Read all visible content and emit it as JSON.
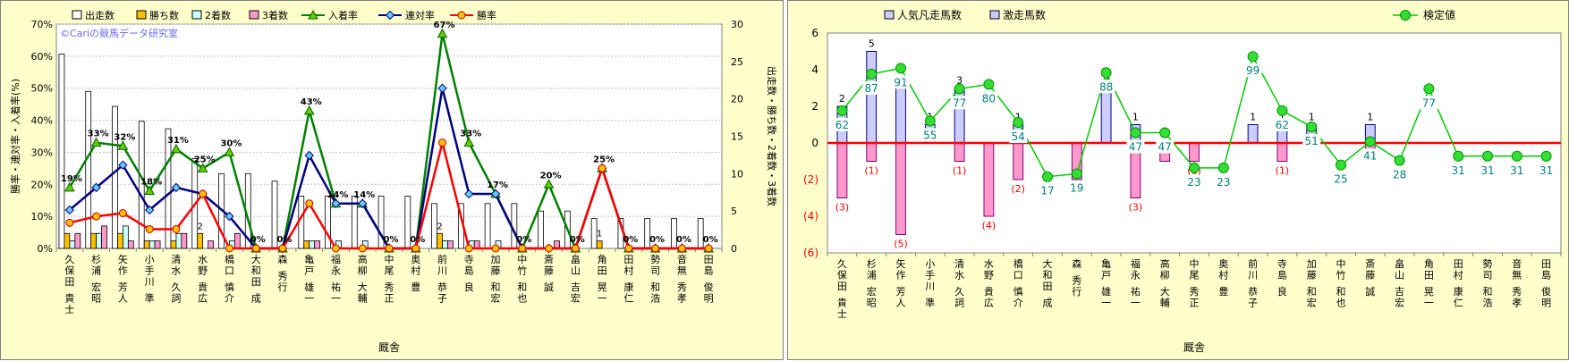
{
  "chart_data": [
    {
      "type": "bar",
      "watermark": "©Cariの競馬データ研究室",
      "xlabel": "厩舎",
      "ylabel_left": "勝率・連対率・入着率(%)",
      "ylabel_right": "出走数・勝ち数・2着数・3着数",
      "ylim_left": [
        0,
        70
      ],
      "ylim_right": [
        0,
        30
      ],
      "yticks_left": [
        "0%",
        "10%",
        "20%",
        "30%",
        "40%",
        "50%",
        "60%",
        "70%"
      ],
      "yticks_right": [
        "0",
        "5",
        "10",
        "15",
        "20",
        "25",
        "30"
      ],
      "categories": [
        "久保田 貴士",
        "杉浦 宏昭",
        "矢作 芳人",
        "小手川 準",
        "清水 久詞",
        "水野 貴広",
        "橋口 慎介",
        "大和田 成",
        "森 秀行",
        "亀戸 雄一",
        "福永 祐一",
        "高柳 大輔",
        "中尾 秀正",
        "奥村 豊",
        "前川 恭子",
        "寺島 良",
        "加藤 和宏",
        "中竹 和也",
        "斎藤 誠",
        "畠山 吉宏",
        "角田 晃一",
        "田村 康仁",
        "勢司 和浩",
        "音無 秀孝",
        "田島 俊明"
      ],
      "series": [
        {
          "name": "出走数",
          "axis": "right",
          "kind": "bar",
          "color": "#ffffff",
          "values": [
            26,
            21,
            19,
            17,
            16,
            12,
            10,
            10,
            9,
            7,
            7,
            7,
            7,
            7,
            6,
            6,
            6,
            6,
            5,
            5,
            4,
            4,
            4,
            4,
            4
          ]
        },
        {
          "name": "勝ち数",
          "axis": "right",
          "kind": "bar",
          "color": "#ffc000",
          "values": [
            2,
            2,
            2,
            1,
            1,
            2,
            0,
            0,
            0,
            1,
            0,
            0,
            0,
            0,
            2,
            0,
            0,
            0,
            0,
            0,
            1,
            0,
            0,
            0,
            0
          ]
        },
        {
          "name": "2着数",
          "axis": "right",
          "kind": "bar",
          "color": "#ccffff",
          "values": [
            1,
            2,
            3,
            1,
            2,
            0,
            1,
            0,
            0,
            1,
            1,
            1,
            0,
            0,
            1,
            1,
            1,
            0,
            0,
            0,
            0,
            0,
            0,
            0,
            0
          ]
        },
        {
          "name": "3着数",
          "axis": "right",
          "kind": "bar",
          "color": "#ff99cc",
          "values": [
            2,
            3,
            1,
            1,
            2,
            1,
            2,
            0,
            0,
            1,
            0,
            0,
            0,
            0,
            1,
            1,
            0,
            0,
            1,
            0,
            0,
            0,
            0,
            0,
            0
          ]
        },
        {
          "name": "入着率",
          "axis": "left",
          "kind": "line",
          "color": "#008000",
          "values": [
            19,
            33,
            32,
            18,
            31,
            25,
            30,
            0,
            0,
            43,
            14,
            14,
            0,
            0,
            67,
            33,
            17,
            0,
            20,
            0,
            25,
            0,
            0,
            0,
            0
          ]
        },
        {
          "name": "連対率",
          "axis": "left",
          "kind": "line",
          "color": "#000080",
          "values": [
            12,
            19,
            26,
            12,
            19,
            17,
            10,
            0,
            0,
            29,
            14,
            14,
            0,
            0,
            50,
            17,
            17,
            0,
            0,
            0,
            25,
            0,
            0,
            0,
            0
          ]
        },
        {
          "name": "勝率",
          "axis": "left",
          "kind": "line",
          "color": "#ff0000",
          "values": [
            8,
            10,
            11,
            6,
            6,
            17,
            0,
            0,
            0,
            14,
            0,
            0,
            0,
            0,
            33,
            0,
            0,
            0,
            0,
            0,
            25,
            0,
            0,
            0,
            0
          ]
        }
      ],
      "bar_labels": [
        {
          "index": 5,
          "text": "2"
        },
        {
          "index": 14,
          "text": "2"
        },
        {
          "index": 20,
          "text": "1"
        }
      ],
      "rate_labels": [
        {
          "index": 0,
          "text": "19%"
        },
        {
          "index": 1,
          "text": "33%"
        },
        {
          "index": 2,
          "text": "32%"
        },
        {
          "index": 3,
          "text": "18%"
        },
        {
          "index": 4,
          "text": "31%"
        },
        {
          "index": 5,
          "text": "25%"
        },
        {
          "index": 6,
          "text": "30%"
        },
        {
          "index": 7,
          "text": "0%"
        },
        {
          "index": 8,
          "text": "0%"
        },
        {
          "index": 9,
          "text": "43%"
        },
        {
          "index": 10,
          "text": "14%"
        },
        {
          "index": 11,
          "text": "14%"
        },
        {
          "index": 12,
          "text": "0%"
        },
        {
          "index": 13,
          "text": "0%"
        },
        {
          "index": 14,
          "text": "67%"
        },
        {
          "index": 15,
          "text": "33%"
        },
        {
          "index": 16,
          "text": "17%"
        },
        {
          "index": 17,
          "text": "0%"
        },
        {
          "index": 18,
          "text": "20%"
        },
        {
          "index": 19,
          "text": "0%"
        },
        {
          "index": 20,
          "text": "25%"
        },
        {
          "index": 21,
          "text": "0%"
        },
        {
          "index": 22,
          "text": "0%"
        },
        {
          "index": 23,
          "text": "0%"
        },
        {
          "index": 24,
          "text": "0%"
        }
      ]
    },
    {
      "type": "bar",
      "xlabel": "厩舎",
      "ylim": [
        -6,
        6
      ],
      "yticks": [
        "(6)",
        "(4)",
        "(2)",
        "0",
        "2",
        "4",
        "6"
      ],
      "categories": [
        "久保田 貴士",
        "杉浦 宏昭",
        "矢作 芳人",
        "小手川 準",
        "清水 久詞",
        "水野 貴広",
        "橋口 慎介",
        "大和田 成",
        "森 秀行",
        "亀戸 雄一",
        "福永 祐一",
        "高柳 大輔",
        "中尾 秀正",
        "奥村 豊",
        "前川 恭子",
        "寺島 良",
        "加藤 和宏",
        "中竹 和也",
        "斎藤 誠",
        "畠山 吉宏",
        "角田 晃一",
        "田村 康仁",
        "勢司 和浩",
        "音無 秀孝",
        "田島 俊明"
      ],
      "series": [
        {
          "name": "人気凡走馬数",
          "kind": "bar",
          "color": "#ff99cc",
          "values": [
            -3,
            -1,
            -5,
            0,
            -1,
            -4,
            -2,
            0,
            -2,
            0,
            -3,
            -1,
            -1,
            0,
            0,
            -1,
            0,
            0,
            -1,
            0,
            0,
            0,
            0,
            0,
            0
          ]
        },
        {
          "name": "激走馬数",
          "kind": "bar",
          "color": "#9999ff",
          "values": [
            2,
            5,
            3,
            1,
            3,
            0,
            1,
            0,
            0,
            3,
            1,
            0,
            0,
            0,
            1,
            1,
            1,
            0,
            1,
            0,
            0,
            0,
            0,
            0,
            0
          ]
        },
        {
          "name": "検定値",
          "kind": "line",
          "color": "#00cc00",
          "values": [
            62,
            87,
            91,
            55,
            77,
            80,
            54,
            17,
            19,
            88,
            47,
            47,
            23,
            23,
            99,
            62,
            51,
            25,
            41,
            28,
            77,
            31,
            31,
            31,
            31
          ]
        }
      ],
      "pos_labels": [
        "2",
        "5",
        "3",
        "1",
        "3",
        "",
        "1",
        "",
        "",
        "3",
        "1",
        "",
        "",
        "",
        "1",
        "1",
        "1",
        "",
        "1",
        "",
        "",
        "",
        "",
        "",
        ""
      ],
      "neg_labels": [
        "(3)",
        "(1)",
        "(5)",
        "",
        "(1)",
        "(4)",
        "(2)",
        "",
        "(2)",
        "",
        "(3)",
        "",
        "(1)",
        "",
        "",
        "(1)",
        "",
        "",
        "",
        "",
        "",
        "",
        "",
        "",
        ""
      ]
    }
  ]
}
